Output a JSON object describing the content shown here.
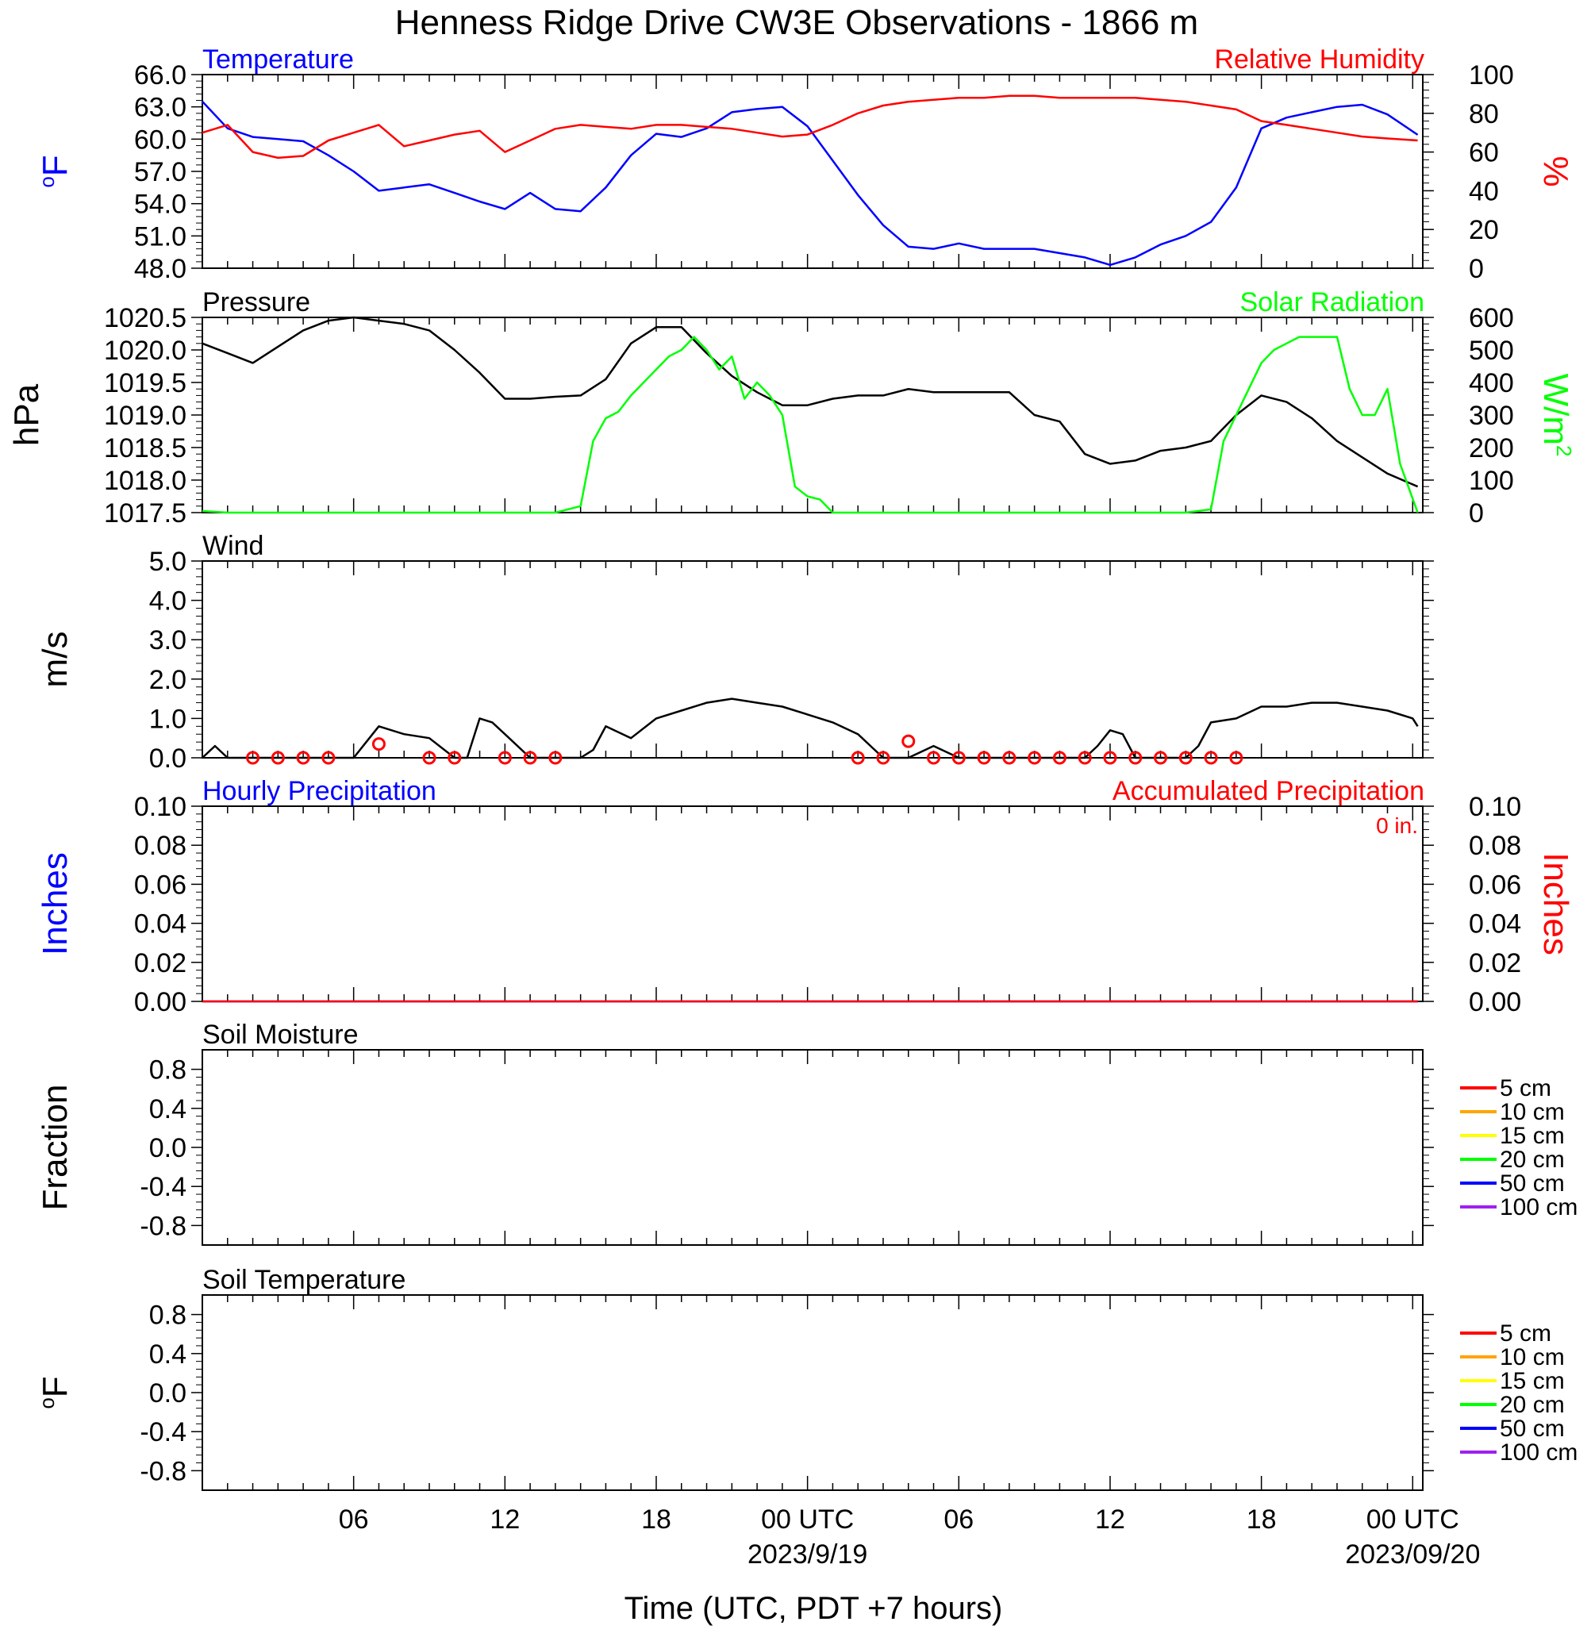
{
  "title": "Henness Ridge Drive CW3E Observations - 1866 m",
  "xaxis": {
    "label": "Time (UTC, PDT +7 hours)",
    "ticks": [
      {
        "hours": 6,
        "label": "06"
      },
      {
        "hours": 12,
        "label": "12"
      },
      {
        "hours": 18,
        "label": "18"
      },
      {
        "hours": 24,
        "label": "00 UTC",
        "sublabel": "2023/9/19"
      },
      {
        "hours": 30,
        "label": "06"
      },
      {
        "hours": 36,
        "label": "12"
      },
      {
        "hours": 42,
        "label": "18"
      },
      {
        "hours": 48,
        "label": "00 UTC",
        "sublabel": "2023/09/20"
      }
    ]
  },
  "colors": {
    "blue": "#0000ff",
    "red": "#ff0000",
    "green": "#00ff00",
    "black": "#000000"
  },
  "chart_data": [
    {
      "type": "line",
      "panel": "temperature_humidity",
      "left_title": "Temperature",
      "right_title": "Relative Humidity",
      "ylabel_left": "oF",
      "ylabel_right": "%",
      "ylim_left": [
        48,
        66
      ],
      "ylim_right": [
        0,
        100
      ],
      "yticks_left": [
        "66.0",
        "63.0",
        "60.0",
        "57.0",
        "54.0",
        "51.0",
        "48.0"
      ],
      "yticks_right": [
        "100",
        "80",
        "60",
        "40",
        "20",
        "0"
      ],
      "series": [
        {
          "name": "Temperature",
          "axis": "left",
          "color": "#0000ff",
          "x": [
            0,
            1,
            2,
            3,
            4,
            5,
            6,
            7,
            8,
            9,
            10,
            11,
            12,
            13,
            14,
            15,
            16,
            17,
            18,
            19,
            20,
            21,
            22,
            23,
            24,
            25,
            26,
            27,
            28,
            29,
            30,
            31,
            32,
            33,
            34,
            35,
            36,
            37,
            38,
            39,
            40,
            41,
            42,
            43,
            44,
            45,
            46,
            47,
            48.2
          ],
          "y": [
            63.5,
            61.0,
            60.2,
            60.0,
            59.8,
            58.5,
            57.0,
            55.2,
            55.5,
            55.8,
            55.0,
            54.2,
            53.5,
            55.0,
            53.5,
            53.3,
            55.5,
            58.5,
            60.5,
            60.2,
            61.0,
            62.5,
            62.8,
            63.0,
            61.2,
            58.0,
            54.8,
            52.0,
            50.0,
            49.8,
            50.3,
            49.8,
            49.8,
            49.8,
            49.4,
            49.0,
            48.3,
            49.0,
            50.2,
            51.0,
            52.3,
            55.5,
            61.0,
            62.0,
            62.5,
            63.0,
            63.2,
            62.3,
            60.4
          ]
        },
        {
          "name": "Relative Humidity",
          "axis": "right",
          "color": "#ff0000",
          "x": [
            0,
            1,
            2,
            3,
            4,
            5,
            6,
            7,
            8,
            9,
            10,
            11,
            12,
            13,
            14,
            15,
            16,
            17,
            18,
            19,
            20,
            21,
            22,
            23,
            24,
            25,
            26,
            27,
            28,
            29,
            30,
            31,
            32,
            33,
            34,
            35,
            36,
            37,
            38,
            39,
            40,
            41,
            42,
            43,
            44,
            45,
            46,
            47,
            48.2
          ],
          "y": [
            70,
            74,
            60,
            57,
            58,
            66,
            70,
            74,
            63,
            66,
            69,
            71,
            60,
            66,
            72,
            74,
            73,
            72,
            74,
            74,
            73,
            72,
            70,
            68,
            69,
            74,
            80,
            84,
            86,
            87,
            88,
            88,
            89,
            89,
            88,
            88,
            88,
            88,
            87,
            86,
            84,
            82,
            76,
            74,
            72,
            70,
            68,
            67,
            66
          ]
        }
      ]
    },
    {
      "type": "line",
      "panel": "pressure_solar",
      "left_title": "Pressure",
      "right_title": "Solar Radiation",
      "ylabel_left": "hPa",
      "ylabel_right": "W/m2",
      "ylim_left": [
        1017.5,
        1020.5
      ],
      "ylim_right": [
        0,
        600
      ],
      "yticks_left": [
        "1020.5",
        "1020.0",
        "1019.5",
        "1019.0",
        "1018.5",
        "1018.0",
        "1017.5"
      ],
      "yticks_right": [
        "600",
        "500",
        "400",
        "300",
        "200",
        "100",
        "0"
      ],
      "series": [
        {
          "name": "Pressure",
          "axis": "left",
          "color": "#000000",
          "x": [
            0,
            1,
            2,
            3,
            4,
            5,
            6,
            7,
            8,
            9,
            10,
            11,
            12,
            13,
            14,
            15,
            16,
            17,
            18,
            19,
            20,
            21,
            22,
            23,
            24,
            25,
            26,
            27,
            28,
            29,
            30,
            31,
            32,
            33,
            34,
            35,
            36,
            37,
            38,
            39,
            40,
            41,
            42,
            43,
            44,
            45,
            46,
            47,
            48.2
          ],
          "y": [
            1020.1,
            1019.95,
            1019.8,
            1020.05,
            1020.3,
            1020.45,
            1020.5,
            1020.45,
            1020.4,
            1020.3,
            1020.0,
            1019.65,
            1019.25,
            1019.25,
            1019.28,
            1019.3,
            1019.55,
            1020.1,
            1020.35,
            1020.35,
            1019.95,
            1019.6,
            1019.35,
            1019.15,
            1019.15,
            1019.25,
            1019.3,
            1019.3,
            1019.4,
            1019.35,
            1019.35,
            1019.35,
            1019.35,
            1019.0,
            1018.9,
            1018.4,
            1018.25,
            1018.3,
            1018.45,
            1018.5,
            1018.6,
            1019.0,
            1019.3,
            1019.2,
            1018.95,
            1018.6,
            1018.35,
            1018.1,
            1017.9
          ]
        },
        {
          "name": "Solar Radiation",
          "axis": "right",
          "color": "#00ff00",
          "x": [
            0,
            1,
            2,
            3,
            4,
            5,
            6,
            7,
            8,
            9,
            10,
            11,
            12,
            13,
            14,
            15,
            15.5,
            16,
            16.5,
            17,
            17.5,
            18,
            18.5,
            19,
            19.5,
            20,
            20.5,
            21,
            21.5,
            22,
            22.5,
            23,
            23.5,
            24,
            24.5,
            25,
            26,
            30,
            35,
            38,
            39,
            40,
            40.5,
            41,
            41.5,
            42,
            42.5,
            43,
            43.5,
            44,
            44.5,
            45,
            45.5,
            46,
            46.5,
            47,
            47.5,
            48.2
          ],
          "y": [
            5,
            0,
            0,
            0,
            0,
            0,
            0,
            0,
            0,
            0,
            0,
            0,
            0,
            0,
            0,
            20,
            220,
            290,
            310,
            360,
            400,
            440,
            480,
            500,
            540,
            500,
            440,
            480,
            350,
            400,
            360,
            300,
            80,
            50,
            40,
            0,
            0,
            0,
            0,
            0,
            0,
            10,
            220,
            300,
            380,
            460,
            500,
            520,
            540,
            540,
            540,
            540,
            380,
            300,
            300,
            380,
            150,
            0
          ]
        }
      ]
    },
    {
      "type": "line",
      "panel": "wind",
      "left_title": "Wind",
      "ylabel_left": "m/s",
      "ylim_left": [
        0,
        5
      ],
      "yticks_left": [
        "5.0",
        "4.0",
        "3.0",
        "2.0",
        "1.0",
        "0.0"
      ],
      "series": [
        {
          "name": "Wind",
          "axis": "left",
          "color": "#000000",
          "x": [
            0,
            0.5,
            1,
            2,
            3,
            4,
            5,
            6,
            6.5,
            7,
            8,
            9,
            10,
            10.5,
            11,
            11.5,
            12,
            13,
            14,
            15,
            15.5,
            16,
            17,
            18,
            19,
            20,
            21,
            22,
            23,
            24,
            25,
            26,
            26.5,
            27,
            28,
            29,
            30,
            31,
            32,
            33,
            34,
            35,
            35.5,
            36,
            36.5,
            37,
            38,
            39,
            39.5,
            40,
            41,
            42,
            43,
            44,
            45,
            46,
            47,
            48,
            48.2
          ],
          "y": [
            0,
            0.3,
            0,
            0,
            0,
            0,
            0,
            0,
            0.4,
            0.8,
            0.6,
            0.5,
            0,
            0,
            1.0,
            0.9,
            0.6,
            0,
            0,
            0,
            0.2,
            0.8,
            0.5,
            1.0,
            1.2,
            1.4,
            1.5,
            1.4,
            1.3,
            1.1,
            0.9,
            0.6,
            0.3,
            0,
            0,
            0.3,
            0,
            0,
            0,
            0,
            0,
            0,
            0.3,
            0.7,
            0.6,
            0,
            0,
            0,
            0.3,
            0.9,
            1.0,
            1.3,
            1.3,
            1.4,
            1.4,
            1.3,
            1.2,
            1.0,
            0.8
          ]
        },
        {
          "name": "Calm",
          "axis": "left",
          "color": "#ff0000",
          "x": [
            2,
            3,
            4,
            5,
            7,
            9,
            10,
            12,
            13,
            14,
            26,
            27,
            28,
            29,
            30,
            31,
            32,
            33,
            34,
            35,
            36,
            37,
            38,
            39,
            40,
            41
          ],
          "y": [
            0,
            0,
            0,
            0,
            0.35,
            0,
            0,
            0,
            0,
            0,
            0,
            0,
            0.42,
            0,
            0,
            0,
            0,
            0,
            0,
            0,
            0,
            0,
            0,
            0,
            0,
            0
          ]
        }
      ]
    },
    {
      "type": "line",
      "panel": "precipitation",
      "left_title": "Hourly Precipitation",
      "right_title": "Accumulated Precipitation",
      "annotation": "0 in.",
      "ylabel_left": "Inches",
      "ylabel_right": "Inches",
      "ylim_left": [
        0,
        0.1
      ],
      "ylim_right": [
        0,
        0.1
      ],
      "yticks_left": [
        "0.10",
        "0.08",
        "0.06",
        "0.04",
        "0.02",
        "0.00"
      ],
      "yticks_right": [
        "0.10",
        "0.08",
        "0.06",
        "0.04",
        "0.02",
        "0.00"
      ],
      "series": [
        {
          "name": "Hourly Precipitation",
          "axis": "left",
          "color": "#0000ff",
          "x": [
            0,
            48.2
          ],
          "y": [
            0,
            0
          ]
        },
        {
          "name": "Accumulated Precipitation",
          "axis": "right",
          "color": "#ff0000",
          "x": [
            0,
            48.2
          ],
          "y": [
            0,
            0
          ]
        }
      ]
    },
    {
      "type": "line",
      "panel": "soil_moisture",
      "left_title": "Soil Moisture",
      "ylabel_left": "Fraction",
      "ylim_left": [
        -1,
        1
      ],
      "yticks_left": [
        "0.8",
        "0.4",
        "0.0",
        "-0.4",
        "-0.8"
      ],
      "legend": [
        {
          "label": "5 cm",
          "color": "#ff0000"
        },
        {
          "label": "10 cm",
          "color": "#ffa500"
        },
        {
          "label": "15 cm",
          "color": "#ffff00"
        },
        {
          "label": "20 cm",
          "color": "#00ff00"
        },
        {
          "label": "50 cm",
          "color": "#0000ff"
        },
        {
          "label": "100 cm",
          "color": "#a020f0"
        }
      ],
      "series": []
    },
    {
      "type": "line",
      "panel": "soil_temperature",
      "left_title": "Soil Temperature",
      "ylabel_left": "oF",
      "ylim_left": [
        -1,
        1
      ],
      "yticks_left": [
        "0.8",
        "0.4",
        "0.0",
        "-0.4",
        "-0.8"
      ],
      "legend": [
        {
          "label": "5 cm",
          "color": "#ff0000"
        },
        {
          "label": "10 cm",
          "color": "#ffa500"
        },
        {
          "label": "15 cm",
          "color": "#ffff00"
        },
        {
          "label": "20 cm",
          "color": "#00ff00"
        },
        {
          "label": "50 cm",
          "color": "#0000ff"
        },
        {
          "label": "100 cm",
          "color": "#a020f0"
        }
      ],
      "series": []
    }
  ]
}
